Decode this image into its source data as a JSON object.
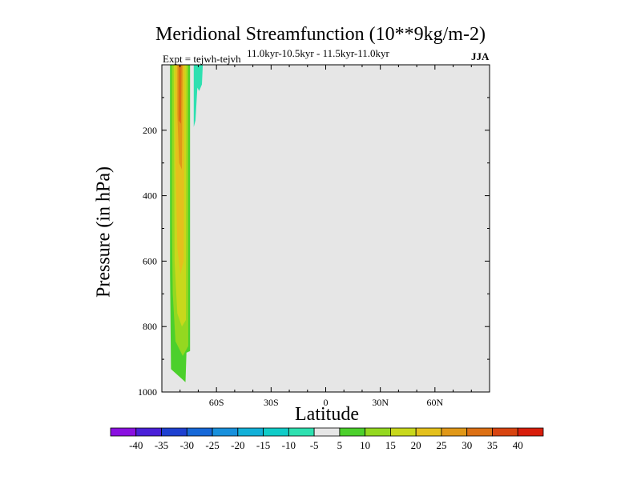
{
  "chart_data": {
    "type": "contour",
    "title": "Meridional Streamfunction (10**9kg/m-2)",
    "subtitle": "11.0kyr-10.5kyr - 11.5kyr-11.0kyr",
    "experiment_label": "Expt = tejwh-tejvh",
    "season": "JJA",
    "xlabel": "Latitude",
    "ylabel": "Pressure (in hPa)",
    "xlim": [
      -90,
      90
    ],
    "ylim": [
      1000,
      0
    ],
    "x_ticks": [
      {
        "value": -60,
        "label": "60S"
      },
      {
        "value": -30,
        "label": "30S"
      },
      {
        "value": 0,
        "label": "0"
      },
      {
        "value": 30,
        "label": "30N"
      },
      {
        "value": 60,
        "label": "60N"
      }
    ],
    "y_ticks": [
      {
        "value": 200,
        "label": "200"
      },
      {
        "value": 400,
        "label": "400"
      },
      {
        "value": 600,
        "label": "600"
      },
      {
        "value": 800,
        "label": "800"
      },
      {
        "value": 1000,
        "label": "1000"
      }
    ],
    "background_color": "#e6e6e6",
    "colorbar": {
      "labels": [
        "-40",
        "-35",
        "-30",
        "-25",
        "-20",
        "-15",
        "-10",
        "-5",
        "5",
        "10",
        "15",
        "20",
        "25",
        "30",
        "35",
        "40"
      ],
      "colors": [
        "#8a10e0",
        "#4a20d8",
        "#1e40d0",
        "#1668d8",
        "#1890dc",
        "#12b0d8",
        "#10ccc8",
        "#2ee0b0",
        "#e6e6e6",
        "#4cd02c",
        "#94d820",
        "#c8d81c",
        "#e4c01c",
        "#e09818",
        "#dc7014",
        "#d84410",
        "#d81e0c"
      ]
    },
    "regions": [
      {
        "level": "5 to 10",
        "color": "#4cd02c",
        "polygon": [
          [
            -85.5,
            0
          ],
          [
            -74.5,
            0
          ],
          [
            -74.5,
            875
          ],
          [
            -76.5,
            880
          ],
          [
            -77.0,
            970
          ],
          [
            -79.0,
            960
          ],
          [
            -82.0,
            945
          ],
          [
            -85.0,
            930
          ],
          [
            -85.5,
            640
          ]
        ]
      },
      {
        "level": "10 to 15",
        "color": "#94d820",
        "polygon": [
          [
            -84.5,
            0
          ],
          [
            -75.5,
            0
          ],
          [
            -75.5,
            860
          ],
          [
            -78.5,
            890
          ],
          [
            -82.5,
            845
          ],
          [
            -84.0,
            700
          ],
          [
            -84.5,
            480
          ]
        ]
      },
      {
        "level": "15 to 20",
        "color": "#c8d81c",
        "polygon": [
          [
            -83.5,
            0
          ],
          [
            -76.5,
            0
          ],
          [
            -76.8,
            780
          ],
          [
            -79.0,
            800
          ],
          [
            -81.5,
            760
          ],
          [
            -83.0,
            600
          ]
        ]
      },
      {
        "level": "20 to 25",
        "color": "#e4c01c",
        "polygon": [
          [
            -82.5,
            0
          ],
          [
            -77.5,
            0
          ],
          [
            -78.0,
            600
          ],
          [
            -79.8,
            640
          ],
          [
            -81.5,
            560
          ],
          [
            -82.5,
            300
          ]
        ]
      },
      {
        "level": "25 to 30",
        "color": "#e09818",
        "polygon": [
          [
            -81.5,
            0
          ],
          [
            -78.5,
            0
          ],
          [
            -79.0,
            320
          ],
          [
            -80.5,
            300
          ],
          [
            -81.5,
            150
          ]
        ]
      },
      {
        "level": "30 to 35",
        "color": "#dc7014",
        "polygon": [
          [
            -80.8,
            0
          ],
          [
            -79.2,
            0
          ],
          [
            -79.5,
            180
          ],
          [
            -80.8,
            170
          ]
        ]
      },
      {
        "level": "-5 to -10",
        "color": "#2ee0b0",
        "polygon": [
          [
            -72.5,
            0
          ],
          [
            -67.5,
            0
          ],
          [
            -68.0,
            60
          ],
          [
            -69.5,
            80
          ],
          [
            -70.5,
            70
          ],
          [
            -71.5,
            170
          ],
          [
            -72.5,
            190
          ]
        ]
      }
    ]
  }
}
